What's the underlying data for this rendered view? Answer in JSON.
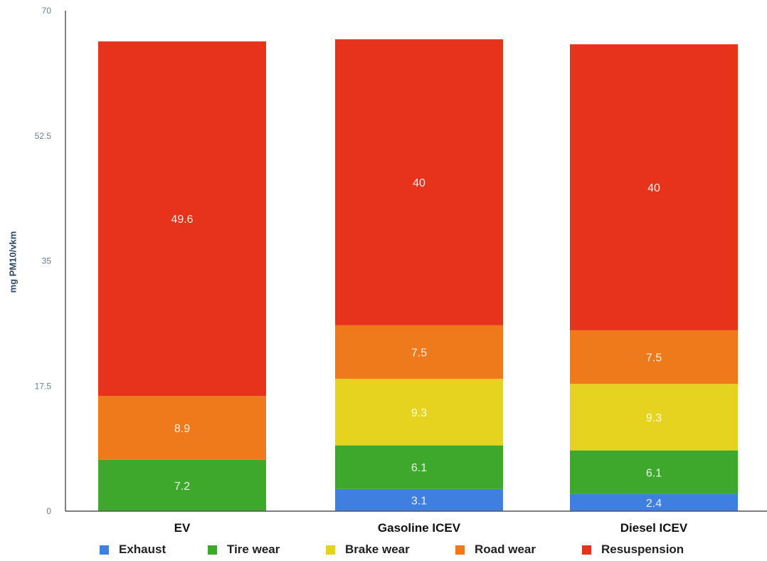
{
  "chart_data": {
    "type": "bar",
    "stacked": true,
    "ylabel": "mg PM10/vkm",
    "ylim": [
      0,
      70
    ],
    "yticks": [
      "0",
      "17.5",
      "35",
      "52.5",
      "70"
    ],
    "categories": [
      "EV",
      "Gasoline ICEV",
      "Diesel ICEV"
    ],
    "series": [
      {
        "name": "Exhaust",
        "color": "#3f7fe0",
        "values": [
          0,
          3.1,
          2.4
        ],
        "labels": [
          "",
          "3.1",
          "2.4"
        ]
      },
      {
        "name": "Tire wear",
        "color": "#3da82c",
        "values": [
          7.2,
          6.1,
          6.1
        ],
        "labels": [
          "7.2",
          "6.1",
          "6.1"
        ]
      },
      {
        "name": "Brake wear",
        "color": "#e6d320",
        "values": [
          0,
          9.3,
          9.3
        ],
        "labels": [
          "",
          "9.3",
          "9.3"
        ]
      },
      {
        "name": "Road wear",
        "color": "#ee7a1c",
        "values": [
          8.9,
          7.5,
          7.5
        ],
        "labels": [
          "8.9",
          "7.5",
          "7.5"
        ]
      },
      {
        "name": "Resuspension",
        "color": "#e8331c",
        "values": [
          49.6,
          40,
          40
        ],
        "labels": [
          "49.6",
          "40",
          "40"
        ]
      }
    ],
    "legend_position": "bottom"
  }
}
